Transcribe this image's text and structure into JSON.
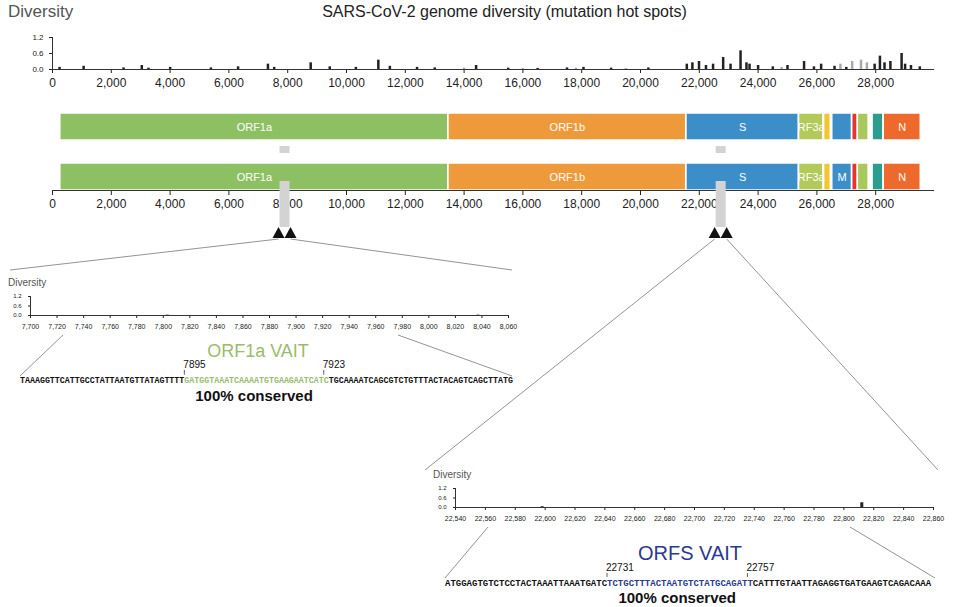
{
  "chart_data": [
    {
      "type": "bar",
      "title": "SARS-CoV-2 genome diversity (mutation hot spots)",
      "y_label": "Diversity",
      "x": [
        240,
        1059,
        2416,
        3037,
        3267,
        4002,
        5388,
        6312,
        7328,
        7540,
        8782,
        9430,
        10319,
        11083,
        11475,
        12400,
        13000,
        14000,
        14408,
        15500,
        16000,
        16500,
        17500,
        17800,
        18060,
        19000,
        19500,
        20268,
        21575,
        21765,
        21990,
        22227,
        22468,
        22812,
        23063,
        23403,
        23604,
        23709,
        24000,
        24500,
        24800,
        25000,
        25563,
        25900,
        26144,
        26600,
        26800,
        27000,
        27200,
        27500,
        27700,
        27964,
        28144,
        28300,
        28500,
        28881,
        29000,
        29200,
        29500
      ],
      "values": [
        0.08,
        0.12,
        0.06,
        0.15,
        0.05,
        0.08,
        0.06,
        0.1,
        0.2,
        0.08,
        0.25,
        0.1,
        0.08,
        0.35,
        0.12,
        0.08,
        0.06,
        0.05,
        0.15,
        0.05,
        0.04,
        0.04,
        0.06,
        0.05,
        0.08,
        0.05,
        0.04,
        0.06,
        0.2,
        0.25,
        0.3,
        0.15,
        0.2,
        0.45,
        0.2,
        0.7,
        0.25,
        0.2,
        0.15,
        0.1,
        0.08,
        0.15,
        0.3,
        0.1,
        0.2,
        0.12,
        0.2,
        0.08,
        0.3,
        0.35,
        0.25,
        0.2,
        0.5,
        0.25,
        0.3,
        0.6,
        0.2,
        0.15,
        0.1
      ],
      "colors": [
        "#222222",
        "#222222",
        "#222222",
        "#222222",
        "#222222",
        "#222222",
        "#222222",
        "#222222",
        "#222222",
        "#222222",
        "#222222",
        "#222222",
        "#222222",
        "#222222",
        "#222222",
        "#222222",
        "#222222",
        "#aaaaaa",
        "#222222",
        "#222222",
        "#aaaaaa",
        "#222222",
        "#222222",
        "#aaaaaa",
        "#222222",
        "#222222",
        "#aaaaaa",
        "#222222",
        "#222222",
        "#222222",
        "#222222",
        "#222222",
        "#222222",
        "#222222",
        "#222222",
        "#222222",
        "#222222",
        "#222222",
        "#222222",
        "#222222",
        "#aaaaaa",
        "#222222",
        "#222222",
        "#222222",
        "#222222",
        "#222222",
        "#aaaaaa",
        "#222222",
        "#aaaaaa",
        "#aaaaaa",
        "#aaaaaa",
        "#222222",
        "#222222",
        "#222222",
        "#222222",
        "#222222",
        "#222222",
        "#222222",
        "#222222"
      ],
      "xlim": [
        0,
        30000
      ],
      "xticks": [
        0,
        {
          "value": 2000,
          "label": "2,000"
        },
        {
          "value": 4000,
          "label": "4,000"
        },
        {
          "value": 6000,
          "label": "6,000"
        },
        {
          "value": 8000,
          "label": "8,000"
        },
        {
          "value": 10000,
          "label": "10,000"
        },
        {
          "value": 12000,
          "label": "12,000"
        },
        {
          "value": 14000,
          "label": "14,000"
        },
        {
          "value": 16000,
          "label": "16,000"
        },
        {
          "value": 18000,
          "label": "18,000"
        },
        {
          "value": 20000,
          "label": "20,000"
        },
        {
          "value": 22000,
          "label": "22,000"
        },
        {
          "value": 24000,
          "label": "24,000"
        },
        {
          "value": 26000,
          "label": "26,000"
        },
        {
          "value": 28000,
          "label": "28,000"
        }
      ],
      "ylim": [
        0,
        1.2
      ],
      "yticks": [
        {
          "value": 0,
          "label": "0.0"
        },
        0.6,
        1.2
      ]
    },
    {
      "type": "bar",
      "y_label": "Diversity",
      "x": [
        7803,
        8037
      ],
      "values": [
        0.02,
        0.02
      ],
      "color": "#222222",
      "xlim": [
        7700,
        8060
      ],
      "xticks": [
        {
          "value": 7700,
          "label": "7,700"
        },
        {
          "value": 7720,
          "label": "7,720"
        },
        {
          "value": 7740,
          "label": "7,740"
        },
        {
          "value": 7760,
          "label": "7,760"
        },
        {
          "value": 7780,
          "label": "7,780"
        },
        {
          "value": 7800,
          "label": "7,800"
        },
        {
          "value": 7820,
          "label": "7,820"
        },
        {
          "value": 7840,
          "label": "7,840"
        },
        {
          "value": 7860,
          "label": "7,860"
        },
        {
          "value": 7880,
          "label": "7,880"
        },
        {
          "value": 7900,
          "label": "7,900"
        },
        {
          "value": 7920,
          "label": "7,920"
        },
        {
          "value": 7940,
          "label": "7,940"
        },
        {
          "value": 7960,
          "label": "7,960"
        },
        {
          "value": 7980,
          "label": "7,980"
        },
        {
          "value": 8000,
          "label": "8,000"
        },
        {
          "value": 8020,
          "label": "8,020"
        },
        {
          "value": 8040,
          "label": "8,040"
        },
        {
          "value": 8060,
          "label": "8,060"
        }
      ],
      "ylim": [
        0,
        1.2
      ],
      "yticks": [
        {
          "value": 0,
          "label": "0.0"
        },
        0.6,
        1.2
      ]
    },
    {
      "type": "bar",
      "y_label": "Diversity",
      "x": [
        22598,
        22812
      ],
      "values": [
        0.05,
        0.3
      ],
      "color": "#222222",
      "xlim": [
        22540,
        22860
      ],
      "xticks": [
        {
          "value": 22540,
          "label": "22,540"
        },
        {
          "value": 22560,
          "label": "22,560"
        },
        {
          "value": 22580,
          "label": "22,580"
        },
        {
          "value": 22600,
          "label": "22,600"
        },
        {
          "value": 22620,
          "label": "22,620"
        },
        {
          "value": 22640,
          "label": "22,640"
        },
        {
          "value": 22660,
          "label": "22,660"
        },
        {
          "value": 22680,
          "label": "22,680"
        },
        {
          "value": 22700,
          "label": "22,700"
        },
        {
          "value": 22720,
          "label": "22,720"
        },
        {
          "value": 22740,
          "label": "22,740"
        },
        {
          "value": 22760,
          "label": "22,760"
        },
        {
          "value": 22780,
          "label": "22,780"
        },
        {
          "value": 22800,
          "label": "22,800"
        },
        {
          "value": 22820,
          "label": "22,820"
        },
        {
          "value": 22840,
          "label": "22,840"
        },
        {
          "value": 22860,
          "label": "22,860"
        }
      ],
      "ylim": [
        0,
        1.2
      ],
      "yticks": [
        {
          "value": 0,
          "label": "0.0"
        },
        0.6,
        1.2
      ]
    }
  ],
  "diagram": {
    "genome_map": {
      "xlim": [
        0,
        30000
      ],
      "xticks": [
        0,
        {
          "value": 2000,
          "label": "2,000"
        },
        {
          "value": 4000,
          "label": "4,000"
        },
        {
          "value": 6000,
          "label": "6,000"
        },
        {
          "value": 8000,
          "label": "8,000"
        },
        {
          "value": 10000,
          "label": "10,000"
        },
        {
          "value": 12000,
          "label": "12,000"
        },
        {
          "value": 14000,
          "label": "14,000"
        },
        {
          "value": 16000,
          "label": "16,000"
        },
        {
          "value": 18000,
          "label": "18,000"
        },
        {
          "value": 20000,
          "label": "20,000"
        },
        {
          "value": 22000,
          "label": "22,000"
        },
        {
          "value": 24000,
          "label": "24,000"
        },
        {
          "value": 26000,
          "label": "26,000"
        },
        {
          "value": 28000,
          "label": "28,000"
        }
      ],
      "genes": [
        {
          "start": 266,
          "end": 13468,
          "color": "#8cc063",
          "labels": [
            "ORF1a",
            "ORF1a"
          ]
        },
        {
          "start": 13468,
          "end": 21555,
          "color": "#ef9a3a",
          "labels": [
            "ORF1b",
            "ORF1b"
          ]
        },
        {
          "start": 21563,
          "end": 25384,
          "color": "#3c8ec8",
          "labels": [
            "S",
            "S"
          ]
        },
        {
          "start": 25393,
          "end": 26220,
          "color": "#b3c95a",
          "labels": [
            "RF3a",
            "RF3a"
          ]
        },
        {
          "start": 26245,
          "end": 26472,
          "color": "#f3c531",
          "labels": [
            null,
            null
          ]
        },
        {
          "start": 26523,
          "end": 27191,
          "color": "#3c8ec8",
          "labels": [
            null,
            "M"
          ]
        },
        {
          "start": 27202,
          "end": 27387,
          "color": "#e5342b",
          "labels": [
            null,
            null
          ]
        },
        {
          "start": 27394,
          "end": 27759,
          "color": "#a8c85c",
          "labels": [
            null,
            null
          ]
        },
        {
          "start": 27894,
          "end": 28259,
          "color": "#2a9d8f",
          "labels": [
            null,
            null
          ]
        },
        {
          "start": 28274,
          "end": 29533,
          "color": "#ee6a2c",
          "labels": [
            "N",
            "N"
          ]
        }
      ]
    },
    "vaits": [
      {
        "title": "ORF1a VAIT",
        "color": "#9bbb6b",
        "start": 7895,
        "end": 7923,
        "sequence_before": "TAAAGGTTCATTGCCTATTAATGTTATAGTTTT",
        "sequence_vait": "GATGGTAAATCAAAATGTGAAGAATCATC",
        "sequence_after": "TGCAAAATCAGCGTCTGTTTACTACAGTCAGCTTATG",
        "note": "100% conserved"
      },
      {
        "title": "ORFS VAIT",
        "color": "#2b3990",
        "start": 22731,
        "end": 22757,
        "sequence_before": "ATGGAGTGTCTCCTACTAAATTAAATGATC",
        "sequence_vait": "TCTGCTTTACTAATGTCTATGCAGATT",
        "sequence_after": "CATTTGTAATTAGAGGTGATGAAGTCAGACAAA",
        "note": "100% conserved"
      }
    ]
  }
}
